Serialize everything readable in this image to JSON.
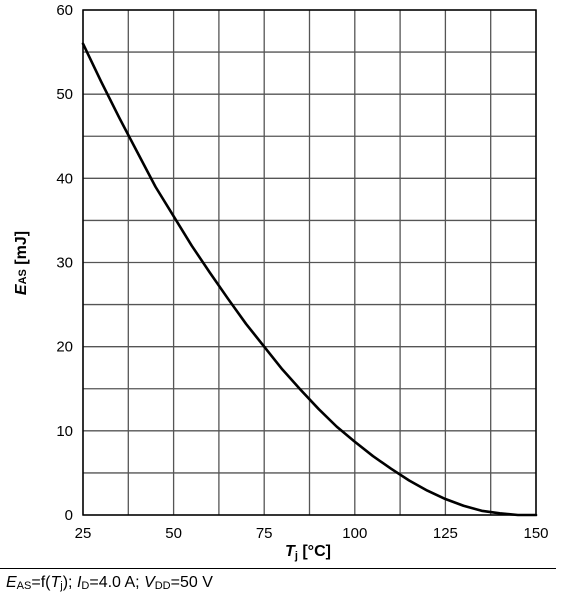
{
  "chart_data": {
    "type": "line",
    "title": "",
    "xlabel": {
      "symbol": "T",
      "sub": "j",
      "unit": " [°C]"
    },
    "ylabel": {
      "symbol": "E",
      "sub": "AS",
      "unit": " [mJ]"
    },
    "xlim": [
      25,
      150
    ],
    "ylim": [
      0,
      60
    ],
    "x_major_ticks": [
      25,
      50,
      75,
      100,
      125,
      150
    ],
    "x_tick_labels": [
      "25",
      "50",
      "75",
      "100",
      "125",
      "150"
    ],
    "y_major_ticks": [
      0,
      10,
      20,
      30,
      40,
      50,
      60
    ],
    "y_tick_labels": [
      "0",
      "10",
      "20",
      "30",
      "40",
      "50",
      "60"
    ],
    "x_grid": [
      25,
      37.5,
      50,
      62.5,
      75,
      87.5,
      100,
      112.5,
      125,
      137.5,
      150
    ],
    "y_grid": [
      0,
      5,
      10,
      15,
      20,
      25,
      30,
      35,
      40,
      45,
      50,
      55,
      60
    ],
    "grid": true,
    "series": [
      {
        "color": "#000000",
        "x": [
          25,
          30,
          35,
          40,
          45,
          50,
          55,
          60,
          65,
          70,
          75,
          80,
          85,
          90,
          95,
          100,
          105,
          110,
          115,
          120,
          125,
          130,
          135,
          140,
          145,
          150
        ],
        "y": [
          56.0,
          51.5,
          47.2,
          43.1,
          39.0,
          35.5,
          32.0,
          28.8,
          25.7,
          22.7,
          20.0,
          17.3,
          14.9,
          12.6,
          10.5,
          8.7,
          7.0,
          5.5,
          4.1,
          2.9,
          1.9,
          1.1,
          0.5,
          0.2,
          0.0,
          0.0
        ]
      }
    ]
  },
  "caption": {
    "p1": "E",
    "p1_sub": "AS",
    "p2": "=f(",
    "p3": "T",
    "p3_sub": "j",
    "p4": "); ",
    "p5": "I",
    "p5_sub": "D",
    "p6": "=4.0 A; ",
    "p7": "V",
    "p7_sub": "DD",
    "p8": "=50 V"
  }
}
